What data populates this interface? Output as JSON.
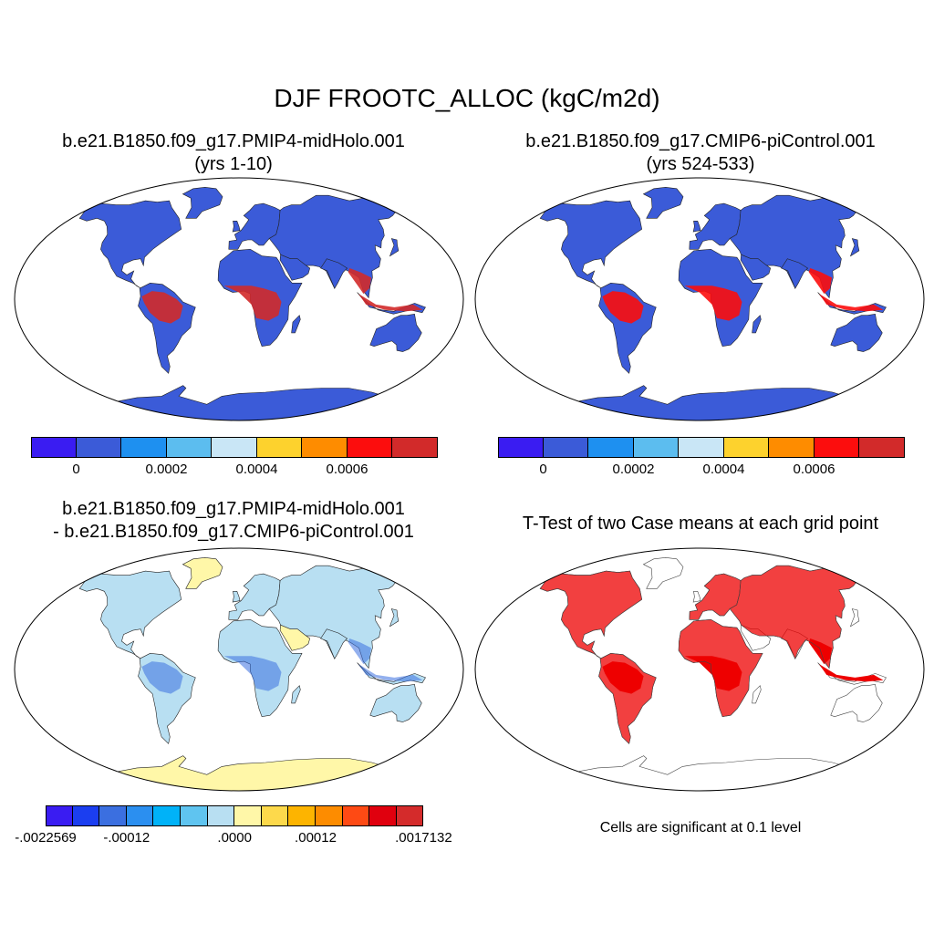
{
  "title": "DJF FROOTC_ALLOC (kgC/m2d)",
  "panels": [
    {
      "title_line1": "b.e21.B1850.f09_g17.PMIP4-midHolo.001",
      "title_line2": "(yrs 1-10)"
    },
    {
      "title_line1": "b.e21.B1850.f09_g17.CMIP6-piControl.001",
      "title_line2": "(yrs 524-533)"
    },
    {
      "title_line1": "b.e21.B1850.f09_g17.PMIP4-midHolo.001",
      "title_line2": "- b.e21.B1850.f09_g17.CMIP6-piControl.001"
    },
    {
      "title_line1": "T-Test of two Case means at each grid point"
    }
  ],
  "colorbars": {
    "field": {
      "colors": [
        "#3a1cf2",
        "#3b5bd8",
        "#1e90f0",
        "#5cbdef",
        "#c9e6f6",
        "#fdd22d",
        "#fe8c00",
        "#fc0d0d",
        "#d22a2a"
      ],
      "ticks": [
        {
          "label": "0",
          "boundary": 1
        },
        {
          "label": "0.0002",
          "boundary": 3
        },
        {
          "label": "0.0004",
          "boundary": 5
        },
        {
          "label": "0.0006",
          "boundary": 7
        }
      ]
    },
    "diff": {
      "colors": [
        "#3a1cf2",
        "#1b3ef0",
        "#3b6fe0",
        "#2b8ff0",
        "#00b2f8",
        "#5fc4f0",
        "#b8dff2",
        "#fff7a8",
        "#fdd94b",
        "#fdb400",
        "#fd8c00",
        "#fe4a14",
        "#e0000e",
        "#d42b2b"
      ],
      "ticks": [
        {
          "label": "-.0022569",
          "boundary": 0
        },
        {
          "label": "-.00012",
          "boundary": 3
        },
        {
          "label": ".0000",
          "boundary": 7
        },
        {
          "label": ".00012",
          "boundary": 10
        },
        {
          "label": ".0017132",
          "boundary": 14
        }
      ]
    }
  },
  "maps": {
    "land_fill": [
      "#3b5bd8",
      "#3b5bd8",
      "#fff7a8",
      "#ffffff"
    ],
    "tropics_fill": [
      "#d22a2a",
      "#fc0d0d",
      "#b8dff2",
      "#ee0000"
    ],
    "ocean_fill": "#ffffff"
  },
  "significance_note": "Cells are significant at 0.1 level"
}
